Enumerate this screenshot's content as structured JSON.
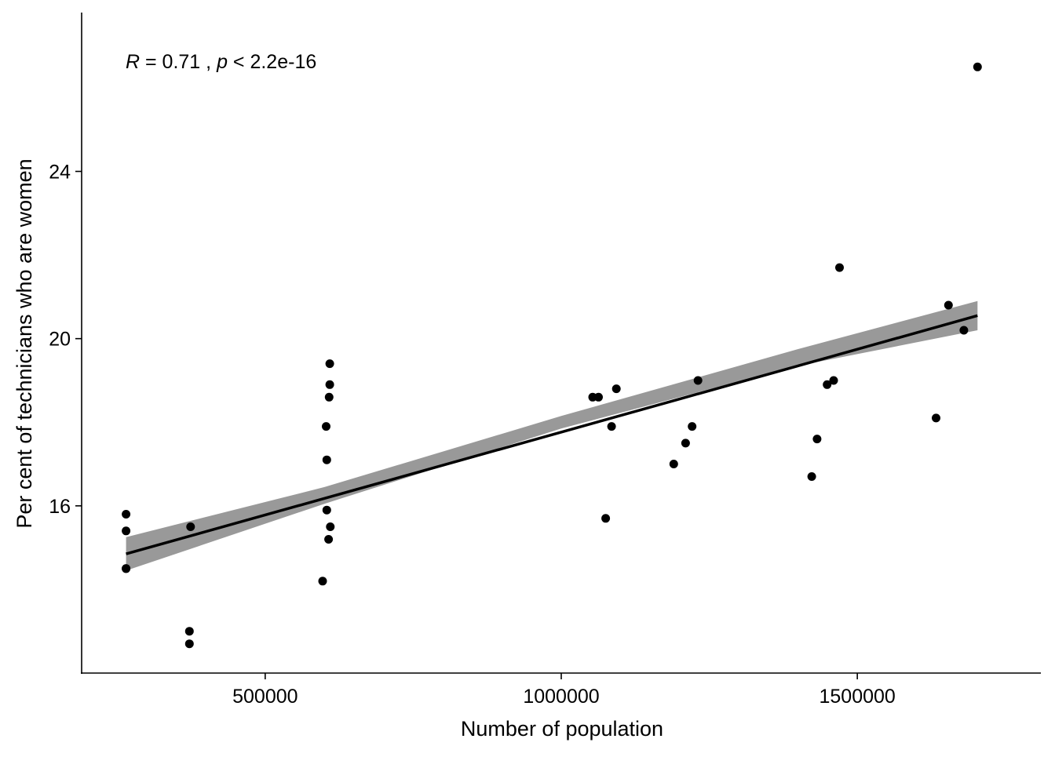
{
  "chart_data": {
    "type": "scatter",
    "title": "",
    "xlabel": "Number of population",
    "ylabel": "Per cent of technicians who are women",
    "xlim": [
      190000,
      1810000
    ],
    "ylim": [
      12.0,
      27.8
    ],
    "x_ticks": [
      500000,
      1000000,
      1500000
    ],
    "x_tick_labels": [
      "500000",
      "1000000",
      "1500000"
    ],
    "y_ticks": [
      16,
      20,
      24
    ],
    "y_tick_labels": [
      "16",
      "20",
      "24"
    ],
    "grid": false,
    "legend": "none",
    "annotation": {
      "r_symbol": "R",
      "r_text": " = 0.71 , ",
      "p_symbol": "p",
      "p_text": " < 2.2e-16"
    },
    "colors": {
      "points": "#000000",
      "fit_line": "#000000",
      "confidence_band": "#999999"
    },
    "points": [
      {
        "x": 265000,
        "y": 15.8
      },
      {
        "x": 265000,
        "y": 15.4
      },
      {
        "x": 265000,
        "y": 14.5
      },
      {
        "x": 265000,
        "y": 14.5
      },
      {
        "x": 374000,
        "y": 15.5
      },
      {
        "x": 372000,
        "y": 13.0
      },
      {
        "x": 372000,
        "y": 12.7
      },
      {
        "x": 597000,
        "y": 14.2
      },
      {
        "x": 603000,
        "y": 17.9
      },
      {
        "x": 604000,
        "y": 17.1
      },
      {
        "x": 604000,
        "y": 15.9
      },
      {
        "x": 607000,
        "y": 15.2
      },
      {
        "x": 608000,
        "y": 18.6
      },
      {
        "x": 609000,
        "y": 19.4
      },
      {
        "x": 609000,
        "y": 18.9
      },
      {
        "x": 610000,
        "y": 15.5
      },
      {
        "x": 1053000,
        "y": 18.6
      },
      {
        "x": 1063000,
        "y": 18.6
      },
      {
        "x": 1075000,
        "y": 15.7
      },
      {
        "x": 1085000,
        "y": 17.9
      },
      {
        "x": 1093000,
        "y": 18.8
      },
      {
        "x": 1190000,
        "y": 17.0
      },
      {
        "x": 1210000,
        "y": 17.5
      },
      {
        "x": 1221000,
        "y": 17.9
      },
      {
        "x": 1231000,
        "y": 19.0
      },
      {
        "x": 1423000,
        "y": 16.7
      },
      {
        "x": 1432000,
        "y": 17.6
      },
      {
        "x": 1449000,
        "y": 18.9
      },
      {
        "x": 1460000,
        "y": 19.0
      },
      {
        "x": 1470000,
        "y": 21.7
      },
      {
        "x": 1633000,
        "y": 18.1
      },
      {
        "x": 1654000,
        "y": 20.8
      },
      {
        "x": 1680000,
        "y": 20.2
      },
      {
        "x": 1703000,
        "y": 26.5
      }
    ],
    "fit_line": {
      "x": [
        265000,
        1703000
      ],
      "y": [
        14.85,
        20.55
      ]
    },
    "confidence_band": {
      "x": [
        265000,
        600000,
        1000000,
        1400000,
        1703000
      ],
      "lower": [
        14.45,
        16.05,
        17.85,
        19.35,
        20.2
      ],
      "upper": [
        15.25,
        16.45,
        18.15,
        19.75,
        20.9
      ]
    }
  }
}
